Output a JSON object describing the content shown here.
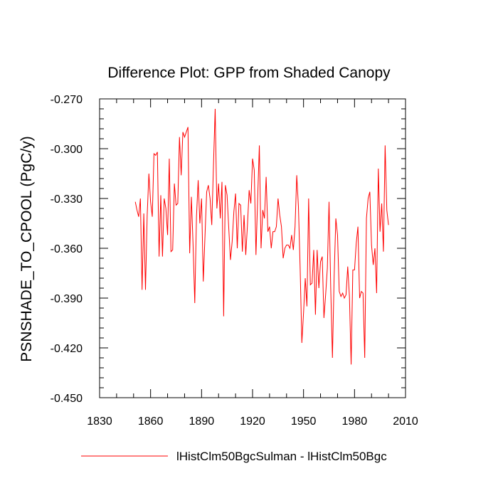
{
  "chart_data": {
    "type": "line",
    "title": "Difference Plot: GPP from Shaded Canopy",
    "ylabel": "PSNSHADE_TO_CPOOL  (PgC/y)",
    "xlabel": "",
    "xlim": [
      1830,
      2010
    ],
    "ylim": [
      -0.45,
      -0.27
    ],
    "xticks": [
      1830,
      1860,
      1890,
      1920,
      1950,
      1980,
      2010
    ],
    "xtick_labels": [
      "1830",
      "1860",
      "1890",
      "1920",
      "1950",
      "1980",
      "2010"
    ],
    "yticks": [
      -0.27,
      -0.3,
      -0.33,
      -0.36,
      -0.39,
      -0.42,
      -0.45
    ],
    "ytick_labels": [
      "-0.270",
      "-0.300",
      "-0.330",
      "-0.360",
      "-0.390",
      "-0.420",
      "-0.450"
    ],
    "legend_position": "bottom",
    "series": [
      {
        "name": "lHistClm50BgcSulman - lHistClm50Bgc",
        "color": "#ff0000",
        "x_start": 1851,
        "x_step": 1,
        "values": [
          -0.332,
          -0.337,
          -0.341,
          -0.33,
          -0.385,
          -0.339,
          -0.385,
          -0.34,
          -0.315,
          -0.332,
          -0.341,
          -0.303,
          -0.304,
          -0.302,
          -0.365,
          -0.328,
          -0.365,
          -0.33,
          -0.336,
          -0.352,
          -0.306,
          -0.362,
          -0.361,
          -0.321,
          -0.334,
          -0.333,
          -0.293,
          -0.316,
          -0.29,
          -0.293,
          -0.29,
          -0.287,
          -0.363,
          -0.329,
          -0.358,
          -0.393,
          -0.341,
          -0.319,
          -0.345,
          -0.33,
          -0.38,
          -0.353,
          -0.326,
          -0.322,
          -0.33,
          -0.346,
          -0.31,
          -0.276,
          -0.336,
          -0.321,
          -0.342,
          -0.32,
          -0.401,
          -0.322,
          -0.328,
          -0.348,
          -0.367,
          -0.356,
          -0.338,
          -0.327,
          -0.36,
          -0.333,
          -0.334,
          -0.362,
          -0.34,
          -0.364,
          -0.346,
          -0.325,
          -0.333,
          -0.306,
          -0.313,
          -0.364,
          -0.33,
          -0.298,
          -0.36,
          -0.337,
          -0.342,
          -0.317,
          -0.35,
          -0.347,
          -0.36,
          -0.35,
          -0.35,
          -0.347,
          -0.33,
          -0.34,
          -0.347,
          -0.366,
          -0.36,
          -0.358,
          -0.358,
          -0.36,
          -0.352,
          -0.361,
          -0.347,
          -0.316,
          -0.335,
          -0.372,
          -0.417,
          -0.399,
          -0.378,
          -0.395,
          -0.33,
          -0.382,
          -0.381,
          -0.361,
          -0.4,
          -0.361,
          -0.384,
          -0.368,
          -0.365,
          -0.402,
          -0.388,
          -0.372,
          -0.332,
          -0.384,
          -0.426,
          -0.377,
          -0.342,
          -0.352,
          -0.386,
          -0.389,
          -0.387,
          -0.39,
          -0.388,
          -0.371,
          -0.389,
          -0.43,
          -0.373,
          -0.373,
          -0.357,
          -0.347,
          -0.39,
          -0.386,
          -0.387,
          -0.426,
          -0.342,
          -0.33,
          -0.326,
          -0.358,
          -0.37,
          -0.36,
          -0.387,
          -0.312,
          -0.35,
          -0.333,
          -0.362,
          -0.298,
          -0.337,
          -0.346
        ]
      }
    ]
  }
}
